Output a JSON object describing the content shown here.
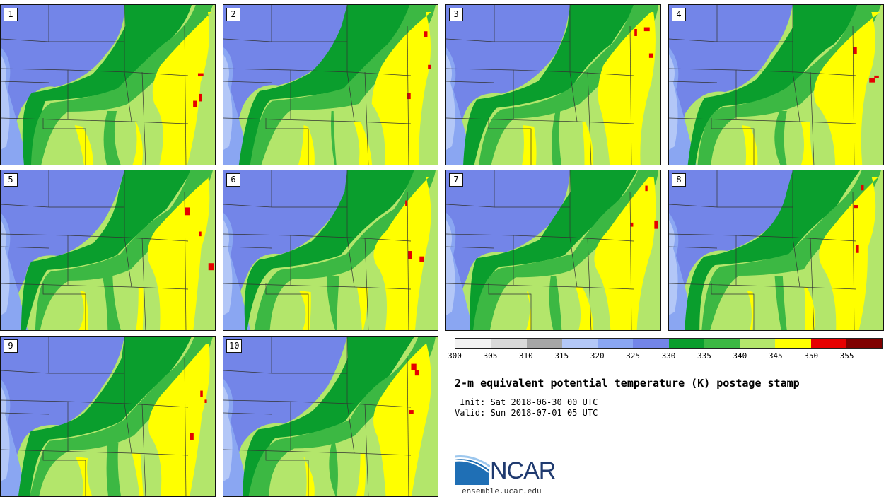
{
  "colors": {
    "c300": "#f2f2f2",
    "c305": "#d9d9d9",
    "c310": "#a6a6a6",
    "c315": "#b3c7f7",
    "c320": "#8aa6f2",
    "c325": "#7385e8",
    "c330": "#0a9e2d",
    "c335": "#3cb843",
    "c340": "#b3e66b",
    "c345": "#ffff00",
    "c350": "#e60000",
    "c355": "#800000",
    "state_lines": "#333333",
    "border": "#111111"
  },
  "panels": [
    {
      "label": "1"
    },
    {
      "label": "2"
    },
    {
      "label": "3"
    },
    {
      "label": "4"
    },
    {
      "label": "5"
    },
    {
      "label": "6"
    },
    {
      "label": "7"
    },
    {
      "label": "8"
    },
    {
      "label": "9"
    },
    {
      "label": "10"
    }
  ],
  "colorbar": {
    "ticks": [
      "300",
      "305",
      "310",
      "315",
      "320",
      "325",
      "330",
      "335",
      "340",
      "345",
      "350",
      "355"
    ],
    "bins": [
      "c300",
      "c305",
      "c310",
      "c315",
      "c320",
      "c325",
      "c330",
      "c335",
      "c340",
      "c345",
      "c350",
      "c355"
    ]
  },
  "title": "2-m equivalent potential temperature (K) postage stamp",
  "init_text": " Init: Sat 2018-06-30 00 UTC",
  "valid_text": "Valid: Sun 2018-07-01 05 UTC",
  "logo": {
    "text": "NCAR",
    "site": "ensemble.ucar.edu"
  }
}
